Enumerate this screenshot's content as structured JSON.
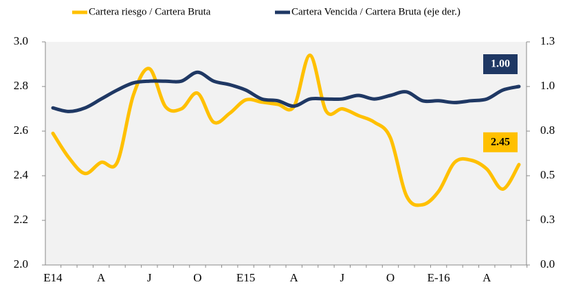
{
  "chart_data": {
    "type": "line",
    "categories": [
      "E14",
      null,
      null,
      "A",
      null,
      null,
      "J",
      null,
      null,
      "O",
      null,
      null,
      "E15",
      null,
      null,
      "A",
      null,
      null,
      "J",
      null,
      null,
      "O",
      null,
      null,
      "E-16",
      null,
      null,
      "A",
      null,
      null
    ],
    "series": [
      {
        "name": "Cartera riesgo / Cartera Bruta",
        "color": "#ffc000",
        "values": [
          2.59,
          2.48,
          2.41,
          2.46,
          2.46,
          2.76,
          2.88,
          2.71,
          2.7,
          2.77,
          2.64,
          2.68,
          2.74,
          2.73,
          2.72,
          2.71,
          2.94,
          2.69,
          2.7,
          2.67,
          2.64,
          2.57,
          2.31,
          2.27,
          2.33,
          2.46,
          2.47,
          2.43,
          2.34,
          2.45
        ],
        "value_labels": [
          null,
          null,
          null,
          null,
          null,
          null,
          null,
          null,
          null,
          null,
          null,
          null,
          null,
          null,
          null,
          null,
          null,
          null,
          null,
          null,
          null,
          null,
          null,
          null,
          null,
          null,
          null,
          null,
          null,
          "2.45"
        ]
      },
      {
        "name": "Cartera Vencida / Cartera Bruta (eje der.)",
        "color": "#1f3864",
        "axis": "y2",
        "values": [
          0.88,
          0.86,
          0.88,
          0.93,
          0.98,
          1.02,
          1.03,
          1.03,
          1.03,
          1.08,
          1.03,
          1.01,
          0.98,
          0.93,
          0.92,
          0.89,
          0.93,
          0.93,
          0.93,
          0.95,
          0.93,
          0.95,
          0.97,
          0.92,
          0.92,
          0.91,
          0.92,
          0.93,
          0.98,
          1.0
        ],
        "value_labels": [
          null,
          null,
          null,
          null,
          null,
          null,
          null,
          null,
          null,
          null,
          null,
          null,
          null,
          null,
          null,
          null,
          null,
          null,
          null,
          null,
          null,
          null,
          null,
          null,
          null,
          null,
          null,
          null,
          null,
          "1.00"
        ]
      }
    ],
    "ylim": [
      2.0,
      3.0
    ],
    "yticks": [
      {
        "value": 2.0,
        "label": "2.0"
      },
      2.2,
      2.4,
      2.6,
      2.8,
      {
        "value": 3.0,
        "label": "3.0"
      }
    ],
    "y2lim": [
      0,
      1.25
    ],
    "y2ticks": [
      {
        "value": 0,
        "label": "0.0"
      },
      {
        "value": 0.25,
        "label": "0.3"
      },
      0.5,
      {
        "value": 0.75,
        "label": "0.8"
      },
      {
        "value": 1.0,
        "label": "1.0"
      },
      {
        "value": 1.25,
        "label": "1.3"
      }
    ],
    "legend": "top"
  }
}
